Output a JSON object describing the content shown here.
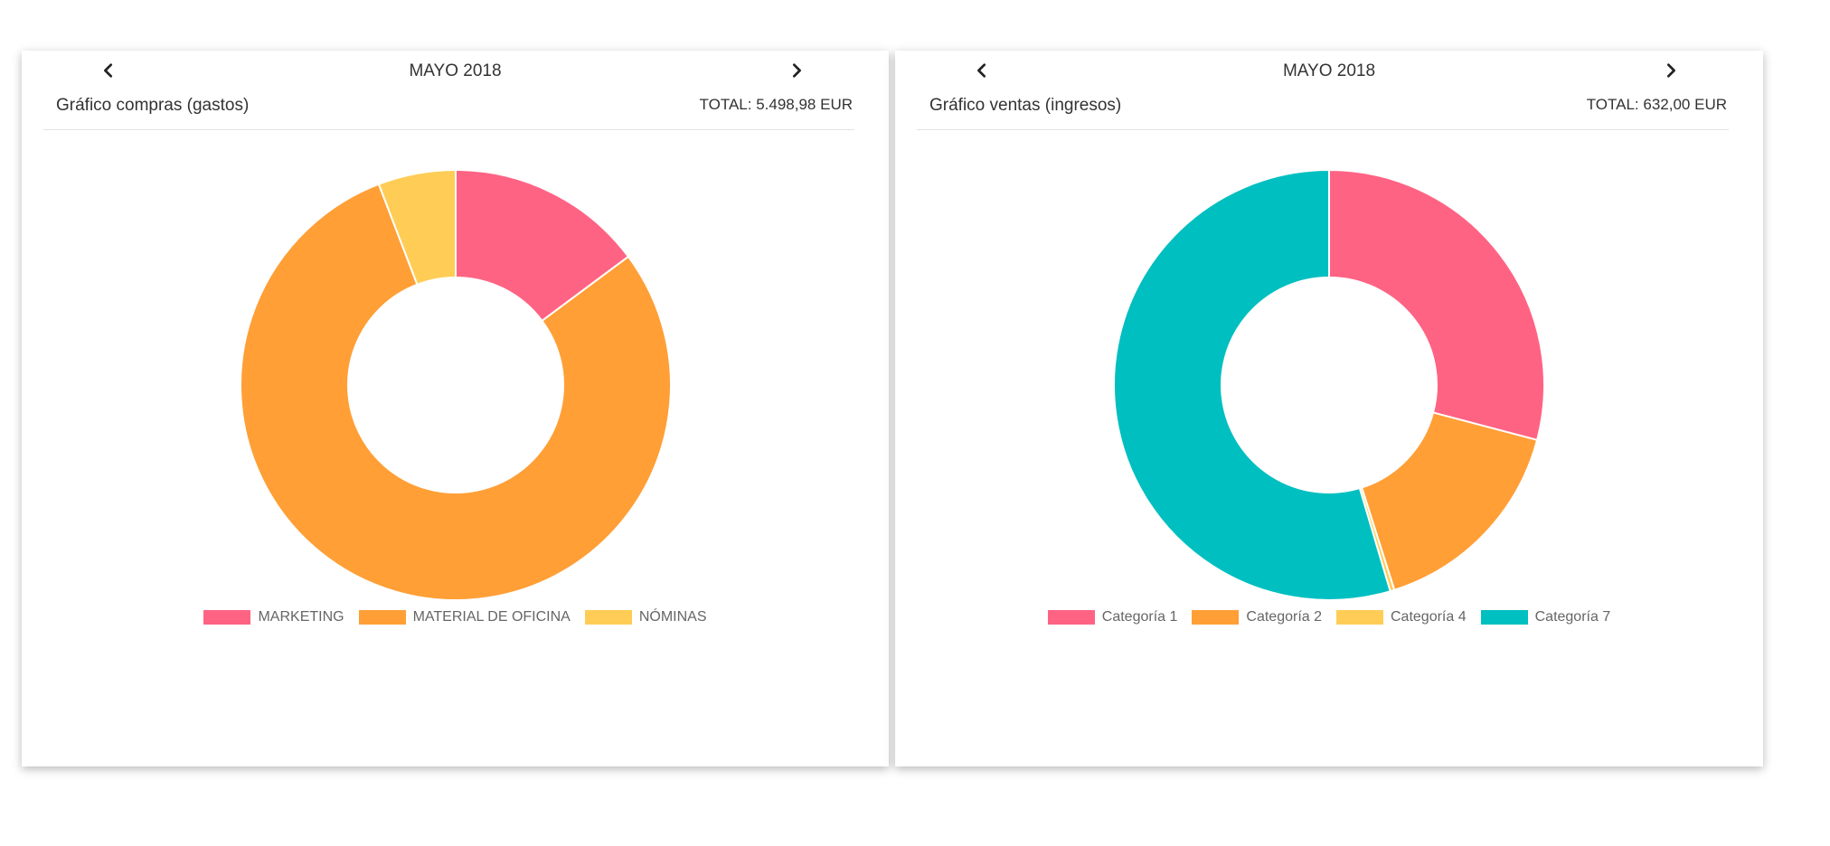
{
  "chart_data": [
    {
      "type": "donut",
      "month": "MAYO 2018",
      "title": "Gráfico compras (gastos)",
      "total": "TOTAL: 5.498,98 EUR",
      "legend_position": "bottom",
      "categories": [
        "MARKETING",
        "MATERIAL DE OFICINA",
        "NÓMINAS"
      ],
      "values": [
        815,
        4364,
        320
      ],
      "colors": [
        "#ff6384",
        "#ff9f36",
        "#ffcd56"
      ]
    },
    {
      "type": "donut",
      "month": "MAYO 2018",
      "title": "Gráfico ventas (ingresos)",
      "total": "TOTAL: 632,00 EUR",
      "legend_position": "bottom",
      "categories": [
        "Categoría 1",
        "Categoría 2",
        "Categoría 4",
        "Categoría 7"
      ],
      "values": [
        184,
        101,
        2,
        345
      ],
      "colors": [
        "#ff6384",
        "#ff9f36",
        "#ffcd56",
        "#00bfc0"
      ]
    }
  ],
  "icons": {
    "prev": "chevron-left-icon",
    "next": "chevron-right-icon"
  }
}
